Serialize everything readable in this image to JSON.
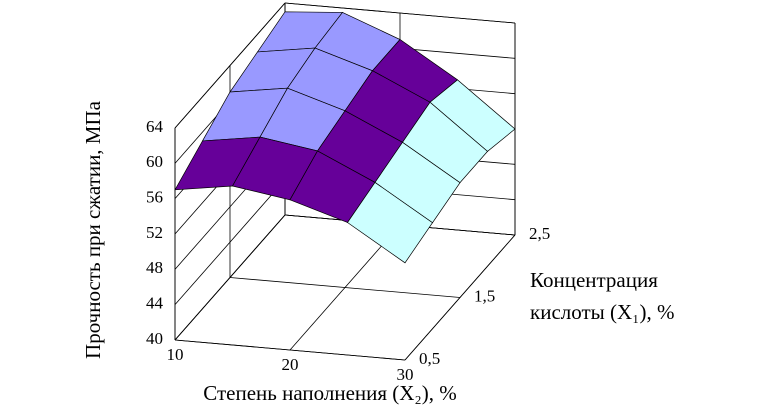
{
  "chart_data": {
    "type": "surface",
    "zlabel": "Прочность при сжатии, МПа",
    "xlabel": "Степень наполнения (X₂), %",
    "ylabel": [
      "Концентрация",
      "кислоты (X₁), %"
    ],
    "x": [
      10,
      15,
      20,
      25,
      30
    ],
    "y": [
      0.5,
      1.0,
      1.5,
      2.0,
      2.5
    ],
    "z": [
      [
        57,
        58,
        57,
        55,
        51
      ],
      [
        59,
        60,
        59,
        56,
        52
      ],
      [
        61,
        62,
        60,
        57,
        53
      ],
      [
        62,
        63,
        61,
        58,
        53
      ],
      [
        63,
        63.5,
        61,
        57,
        52
      ]
    ],
    "xlim": [
      10,
      30
    ],
    "ylim": [
      0.5,
      2.5
    ],
    "zlim": [
      40,
      64
    ],
    "xticks": [
      10,
      20,
      30
    ],
    "yticks": [
      {
        "value": 0.5,
        "label": "0,5"
      },
      {
        "value": 1.5,
        "label": "1,5"
      },
      {
        "value": 2.5,
        "label": "2,5"
      }
    ],
    "zticks": [
      40,
      44,
      48,
      52,
      56,
      60,
      64
    ],
    "band_colors": [
      "#e0e0ff",
      "#ffe0f0",
      "#ffffcc",
      "#ccffff",
      "#660099",
      "#9999ff"
    ],
    "grid": true
  }
}
